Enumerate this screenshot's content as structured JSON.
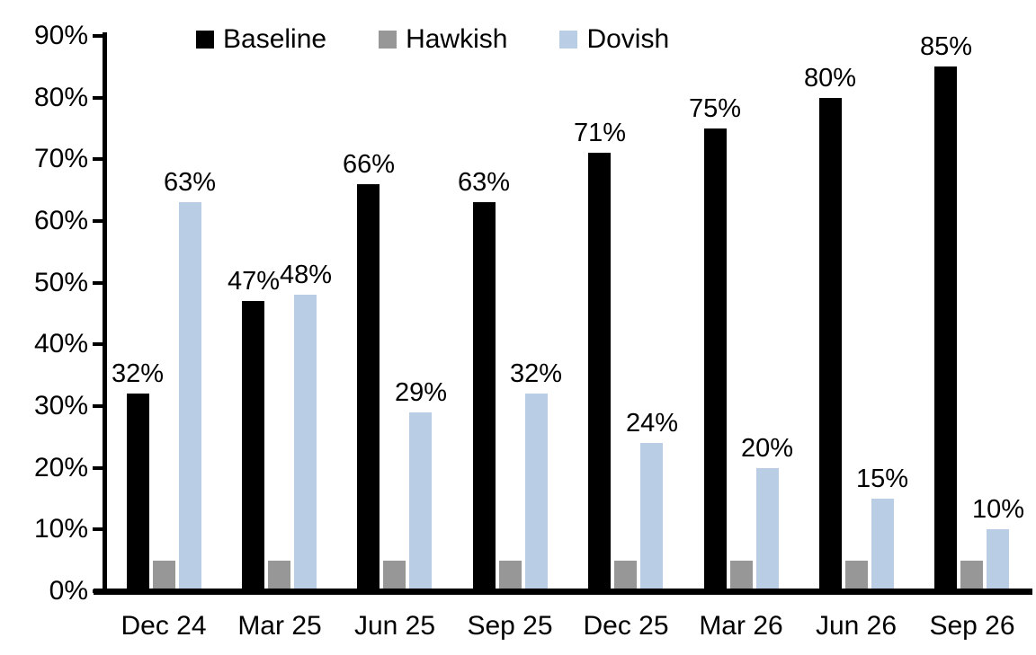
{
  "chart_data": {
    "type": "bar",
    "title": "",
    "xlabel": "",
    "ylabel": "",
    "categories": [
      "Dec 24",
      "Mar 25",
      "Jun 25",
      "Sep 25",
      "Dec 25",
      "Mar 26",
      "Jun 26",
      "Sep 26"
    ],
    "series": [
      {
        "name": "Baseline",
        "color": "#000000",
        "values": [
          32,
          47,
          66,
          63,
          71,
          75,
          80,
          85
        ],
        "labels": [
          "32%",
          "47%",
          "66%",
          "63%",
          "71%",
          "75%",
          "80%",
          "85%"
        ],
        "show_labels": true
      },
      {
        "name": "Hawkish",
        "color": "#979797",
        "values": [
          5,
          5,
          5,
          5,
          5,
          5,
          5,
          5
        ],
        "labels": [],
        "show_labels": false
      },
      {
        "name": "Dovish",
        "color": "#B9CDE5",
        "values": [
          63,
          48,
          29,
          32,
          24,
          20,
          15,
          10
        ],
        "labels": [
          "63%",
          "48%",
          "29%",
          "32%",
          "24%",
          "20%",
          "15%",
          "10%"
        ],
        "show_labels": true
      }
    ],
    "ylim": [
      0,
      90
    ],
    "ytick_step": 10,
    "ytick_labels": [
      "0%",
      "10%",
      "20%",
      "30%",
      "40%",
      "50%",
      "60%",
      "70%",
      "80%",
      "90%"
    ],
    "grid": false,
    "legend_position": "top",
    "axis_color": "#000000",
    "background_color": "#ffffff"
  }
}
